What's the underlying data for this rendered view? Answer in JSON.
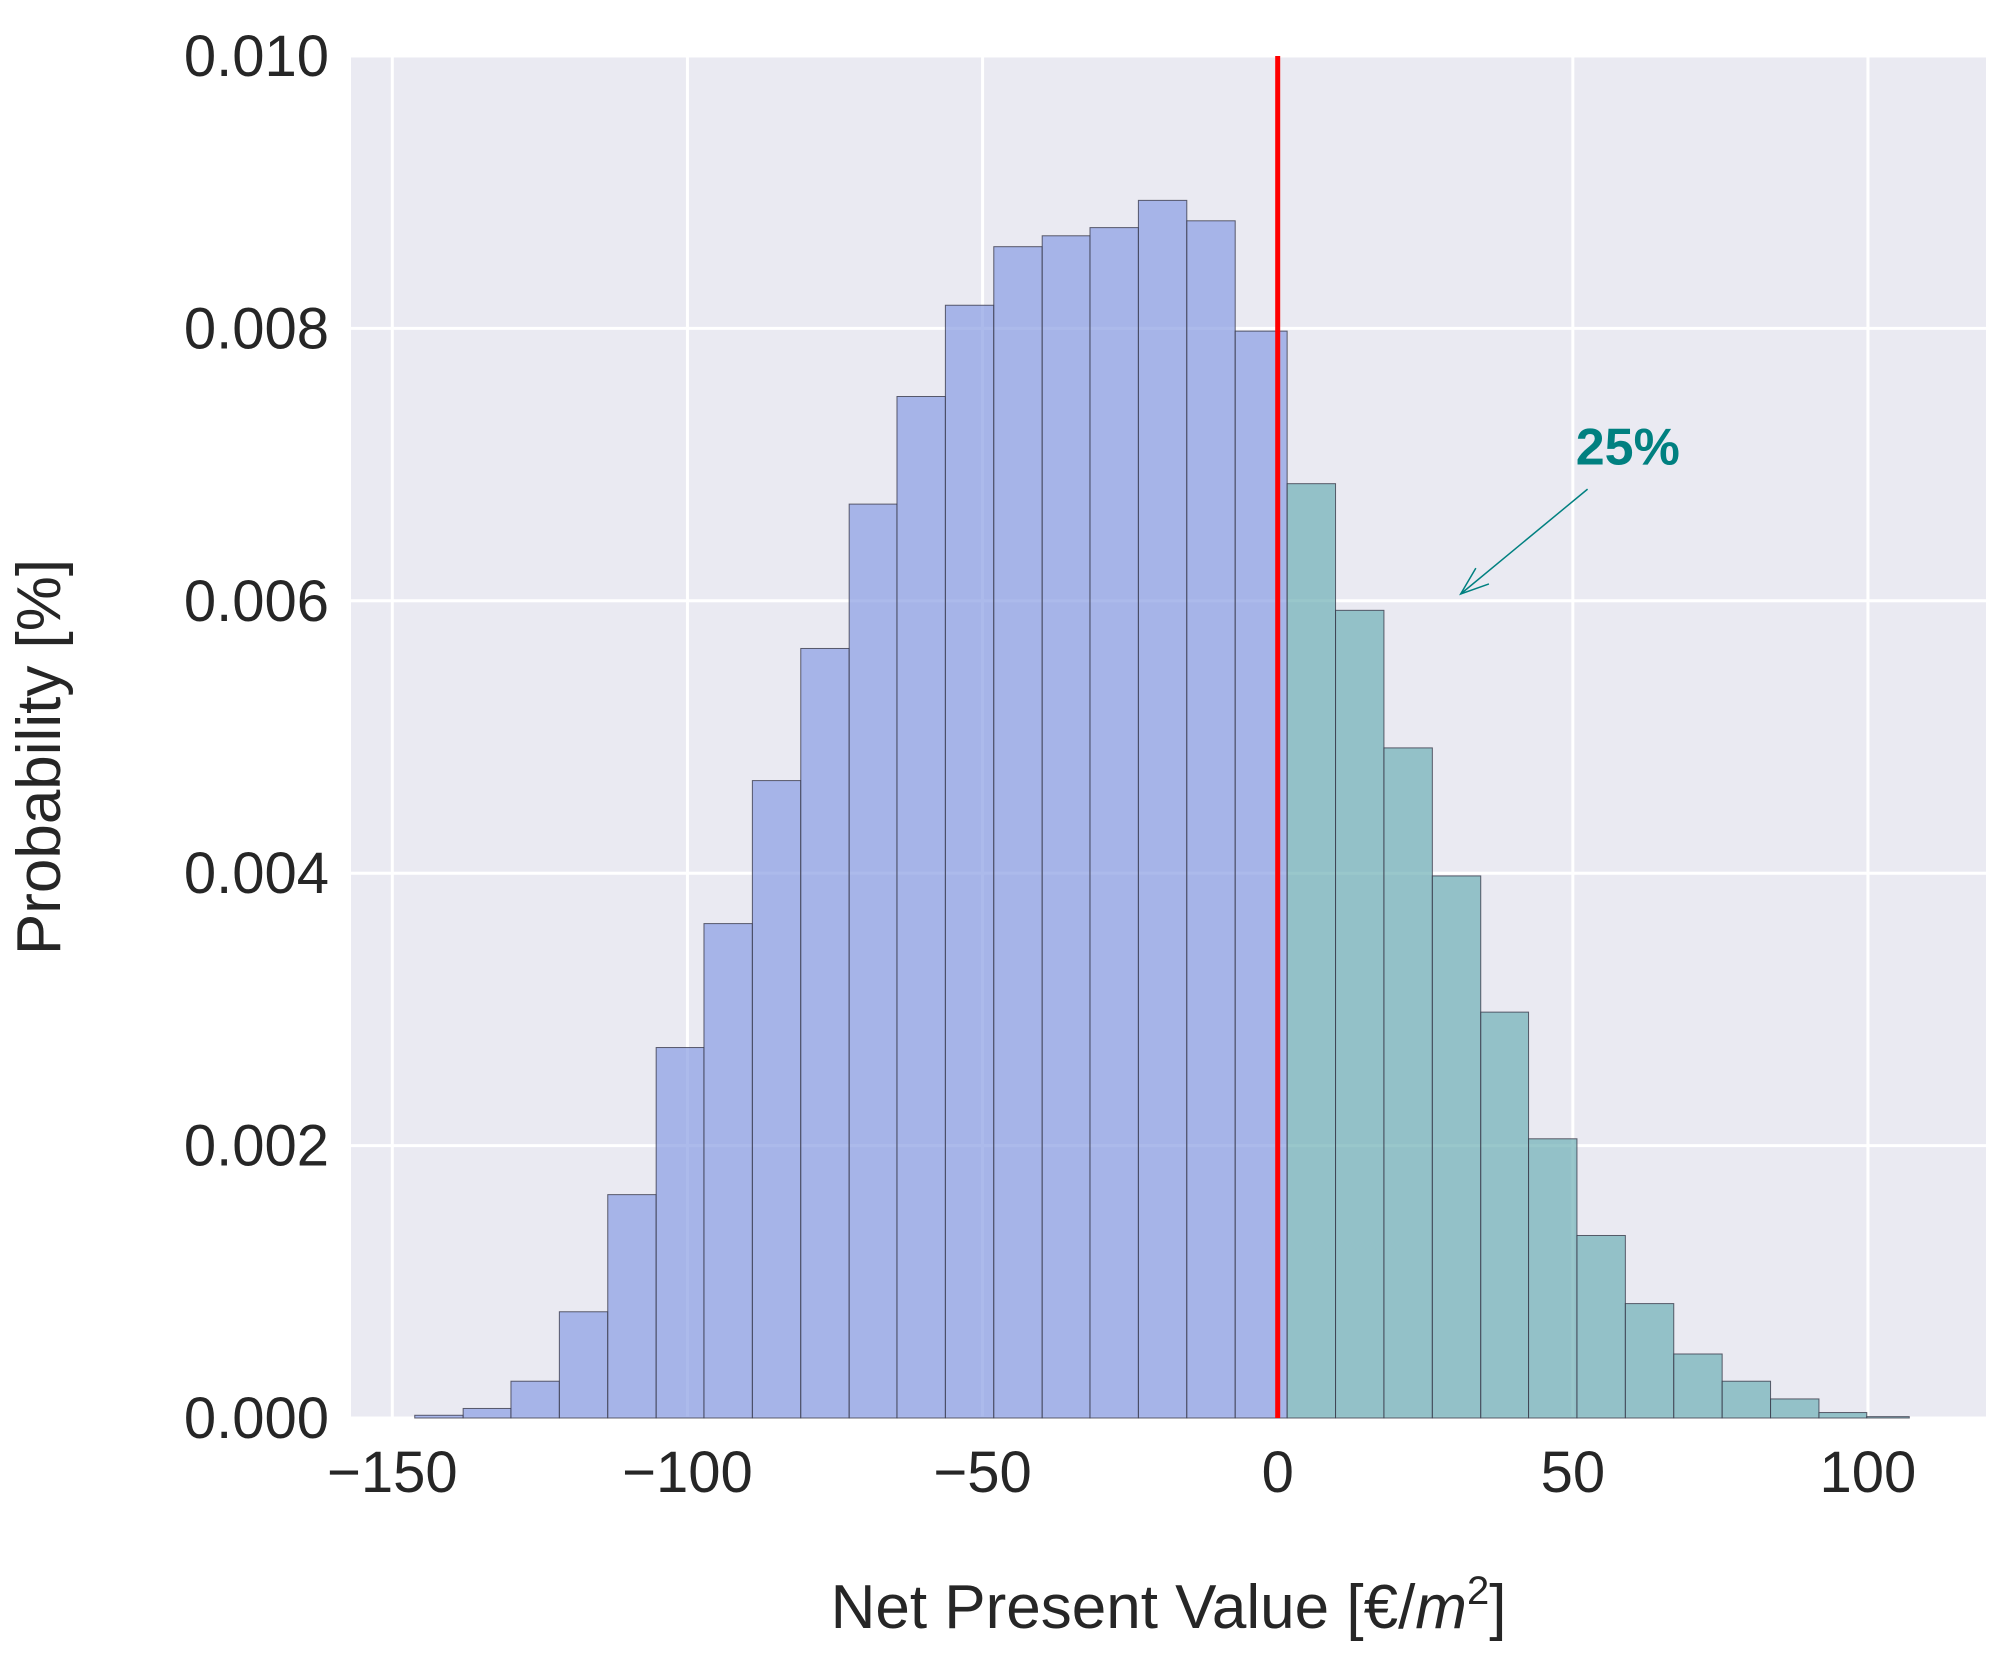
{
  "chart_data": {
    "type": "bar",
    "subtype": "histogram",
    "xlabel": "Net Present Value [€/m²]",
    "xlabel_parts": {
      "base": "Net Present Value [€/",
      "var": "m",
      "sup": "2",
      "end": "]"
    },
    "ylabel": "Probability [%]",
    "xlim": [
      -157,
      120
    ],
    "ylim": [
      0,
      0.01
    ],
    "xticks": [
      -150,
      -100,
      -50,
      0,
      50,
      100
    ],
    "xtick_labels": [
      "−150",
      "−100",
      "−50",
      "0",
      "50",
      "100"
    ],
    "yticks": [
      0,
      0.002,
      0.004,
      0.006,
      0.008,
      0.01
    ],
    "ytick_labels": [
      "0.000",
      "0.002",
      "0.004",
      "0.006",
      "0.008",
      "0.010"
    ],
    "grid": true,
    "series": [
      {
        "bins": [
          [
            -146.2,
            -138.0,
            2e-05
          ],
          [
            -138.0,
            -129.9,
            7e-05
          ],
          [
            -129.9,
            -121.7,
            0.00027
          ],
          [
            -121.7,
            -113.5,
            0.00078
          ],
          [
            -113.5,
            -105.3,
            0.00164
          ],
          [
            -105.3,
            -97.2,
            0.00272
          ],
          [
            -97.2,
            -89.0,
            0.00363
          ],
          [
            -89.0,
            -80.8,
            0.00468
          ],
          [
            -80.8,
            -72.6,
            0.00565
          ],
          [
            -72.6,
            -64.5,
            0.00671
          ],
          [
            -64.5,
            -56.3,
            0.0075
          ],
          [
            -56.3,
            -48.1,
            0.00817
          ],
          [
            -48.1,
            -39.9,
            0.0086
          ],
          [
            -39.9,
            -31.8,
            0.00868
          ],
          [
            -31.8,
            -23.6,
            0.00874
          ],
          [
            -23.6,
            -15.4,
            0.00894
          ],
          [
            -15.4,
            -7.2,
            0.00879
          ],
          [
            -7.2,
            1.6,
            0.00798
          ]
        ],
        "color": "#8c9fe3"
      },
      {
        "bins": [
          [
            1.6,
            9.8,
            0.00686
          ],
          [
            9.8,
            18.0,
            0.00593
          ],
          [
            18.0,
            26.2,
            0.00492
          ],
          [
            26.2,
            34.4,
            0.00398
          ],
          [
            34.4,
            42.5,
            0.00298
          ],
          [
            42.5,
            50.7,
            0.00205
          ],
          [
            50.7,
            58.9,
            0.00134
          ],
          [
            58.9,
            67.1,
            0.00084
          ],
          [
            67.1,
            75.3,
            0.00047
          ],
          [
            75.3,
            83.5,
            0.00027
          ],
          [
            83.5,
            91.7,
            0.00014
          ],
          [
            91.7,
            99.8,
            4e-05
          ],
          [
            99.8,
            107.0,
            1e-05
          ]
        ],
        "color": "#72b2b7"
      }
    ],
    "threshold_line": {
      "x": 0,
      "color": "#ff0000"
    },
    "annotation": {
      "text": "25%",
      "color": "#008080",
      "text_at": [
        50.5,
        0.007
      ],
      "arrow_from": [
        52.5,
        0.00682
      ],
      "arrow_to": [
        31,
        0.00605
      ]
    },
    "colors": {
      "plot_bg": "#eaeaf2",
      "grid": "#ffffff",
      "bar_edge": "#3a3a4a",
      "text": "#262626"
    }
  }
}
